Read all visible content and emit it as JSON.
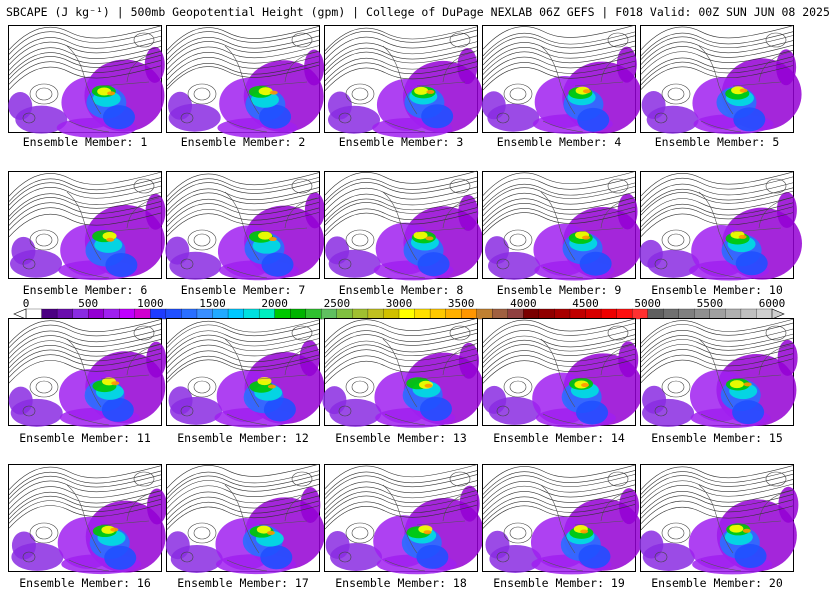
{
  "header": {
    "title": "SBCAPE (J kg⁻¹) | 500mb Geopotential Height (gpm) | College of DuPage NEXLAB 06Z GEFS | F018 Valid: 00Z SUN JUN 08 2025"
  },
  "panels": [
    {
      "caption": "Ensemble Member: 1"
    },
    {
      "caption": "Ensemble Member: 2"
    },
    {
      "caption": "Ensemble Member: 3"
    },
    {
      "caption": "Ensemble Member: 4"
    },
    {
      "caption": "Ensemble Member: 5"
    },
    {
      "caption": "Ensemble Member: 6"
    },
    {
      "caption": "Ensemble Member: 7"
    },
    {
      "caption": "Ensemble Member: 8"
    },
    {
      "caption": "Ensemble Member: 9"
    },
    {
      "caption": "Ensemble Member: 10"
    },
    {
      "caption": "Ensemble Member: 11"
    },
    {
      "caption": "Ensemble Member: 12"
    },
    {
      "caption": "Ensemble Member: 13"
    },
    {
      "caption": "Ensemble Member: 14"
    },
    {
      "caption": "Ensemble Member: 15"
    },
    {
      "caption": "Ensemble Member: 16"
    },
    {
      "caption": "Ensemble Member: 17"
    },
    {
      "caption": "Ensemble Member: 18"
    },
    {
      "caption": "Ensemble Member: 19"
    },
    {
      "caption": "Ensemble Member: 20"
    }
  ],
  "colorbar": {
    "tick_labels": [
      "0",
      "500",
      "1000",
      "1500",
      "2000",
      "2500",
      "3000",
      "3500",
      "4000",
      "4500",
      "5000",
      "5500",
      "6000"
    ],
    "colors": [
      "#ffffff",
      "#4b0082",
      "#6a0dad",
      "#8a2be2",
      "#9400d3",
      "#a020f0",
      "#c000ff",
      "#d100d1",
      "#1e3cff",
      "#2050ff",
      "#2a6fff",
      "#3a8fff",
      "#22aaff",
      "#00c8ff",
      "#00e0e0",
      "#00f0c0",
      "#00c800",
      "#00b400",
      "#30c030",
      "#60c060",
      "#80c040",
      "#a0c030",
      "#c0c020",
      "#d0c000",
      "#ffff00",
      "#ffe000",
      "#ffc800",
      "#ffb000",
      "#ff9600",
      "#c08030",
      "#a06040",
      "#904040",
      "#7a0000",
      "#900000",
      "#a80000",
      "#c00000",
      "#d80000",
      "#ee0000",
      "#ff1010",
      "#ff3030",
      "#606060",
      "#707070",
      "#808080",
      "#909090",
      "#a0a0a0",
      "#b0b0b0",
      "#c0c0c0",
      "#d0d0d0"
    ]
  }
}
